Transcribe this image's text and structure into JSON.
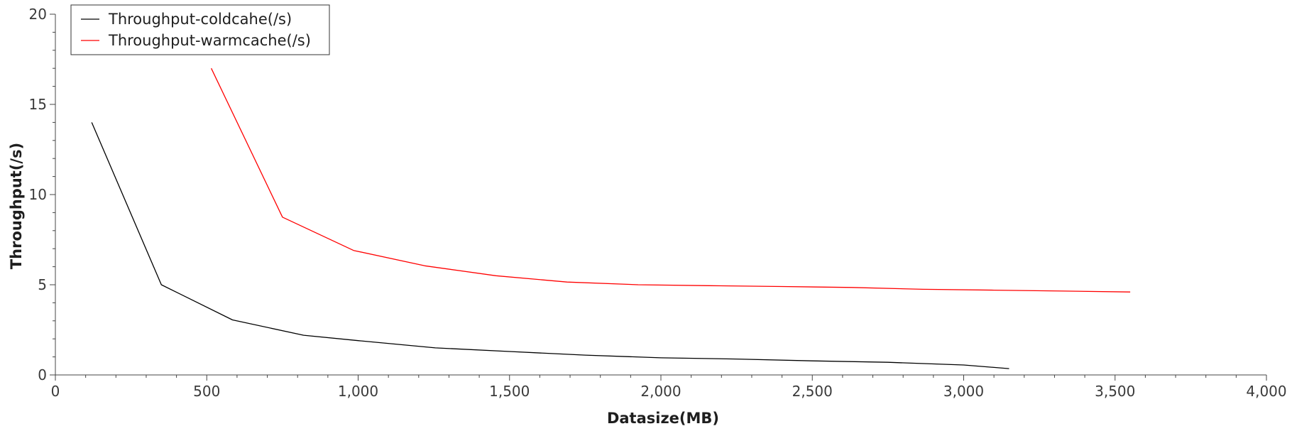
{
  "chart_data": {
    "type": "line",
    "title": "",
    "xlabel": "Datasize(MB)",
    "ylabel": "Throughput(/s)",
    "xlim": [
      0,
      4000
    ],
    "ylim": [
      0,
      20
    ],
    "grid": false,
    "legend_position": "top-left",
    "x_ticks": [
      0,
      500,
      1000,
      1500,
      2000,
      2500,
      3000,
      3500,
      4000
    ],
    "x_tick_labels": [
      "0",
      "500",
      "1,000",
      "1,500",
      "2,000",
      "2,500",
      "3,000",
      "3,500",
      "4,000"
    ],
    "y_ticks": [
      0,
      5,
      10,
      15,
      20
    ],
    "y_tick_labels": [
      "0",
      "5",
      "10",
      "15",
      "20"
    ],
    "series": [
      {
        "name": "Throughput-coldcahe(/s)",
        "color": "#000000",
        "x": [
          120,
          350,
          585,
          820,
          1000,
          1255,
          1500,
          1750,
          2000,
          2250,
          2500,
          2750,
          3000,
          3150
        ],
        "y": [
          14.0,
          5.0,
          3.05,
          2.2,
          1.9,
          1.5,
          1.3,
          1.1,
          0.95,
          0.88,
          0.78,
          0.7,
          0.55,
          0.35
        ]
      },
      {
        "name": "Throughput-warmcache(/s)",
        "color": "#ff0000",
        "x": [
          515,
          750,
          985,
          1220,
          1455,
          1690,
          1925,
          2160,
          2400,
          2630,
          2865,
          3100,
          3330,
          3550
        ],
        "y": [
          17.0,
          8.75,
          6.9,
          6.05,
          5.5,
          5.15,
          5.0,
          4.95,
          4.9,
          4.85,
          4.75,
          4.7,
          4.65,
          4.6
        ]
      }
    ]
  }
}
